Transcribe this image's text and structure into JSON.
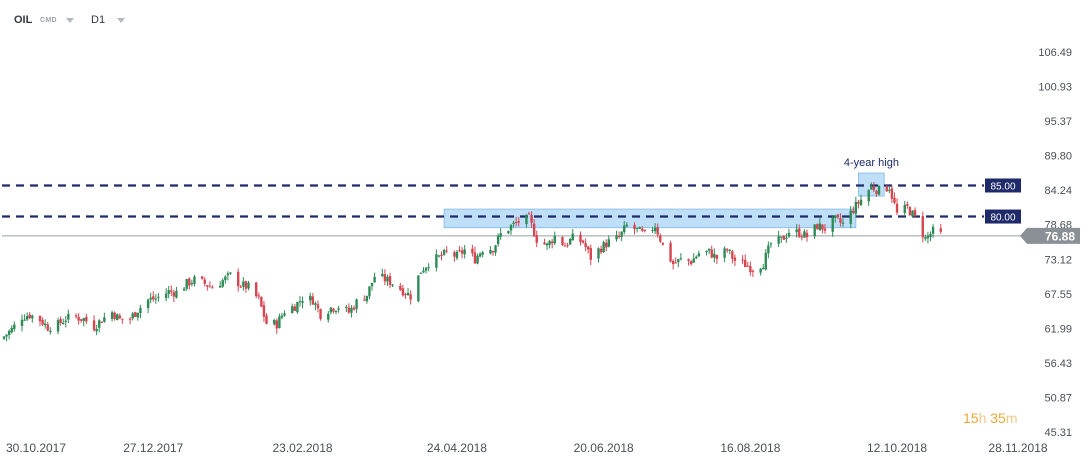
{
  "toolbar": {
    "symbol": "OIL",
    "symbol_type": "CMD",
    "timeframe": "D1"
  },
  "countdown": {
    "hours_value": "15",
    "hours_unit": "h",
    "minutes_value": "35",
    "minutes_unit": "m"
  },
  "colors": {
    "up": "#2e8b57",
    "down": "#d64550",
    "level_line": "#1f2a6b",
    "zone": "#a9d4f5",
    "price_badge": "#8a9096",
    "level_badge": "#1f2a6b"
  },
  "chart_data": {
    "type": "candlestick",
    "symbol": "OIL",
    "timeframe": "D1",
    "x_tick_labels": [
      "30.10.2017",
      "27.12.2017",
      "23.02.2018",
      "24.04.2018",
      "20.06.2018",
      "16.08.2018",
      "12.10.2018",
      "28.11.2018"
    ],
    "y_tick_labels": [
      "106.49",
      "100.93",
      "95.37",
      "89.80",
      "84.24",
      "78.68",
      "73.12",
      "67.55",
      "61.99",
      "56.43",
      "50.87",
      "45.31"
    ],
    "y_range": [
      45.31,
      106.49
    ],
    "current_price": "76.88",
    "levels": [
      {
        "label": "85.00",
        "value": 85.0
      },
      {
        "label": "80.00",
        "value": 80.0
      }
    ],
    "annotation": "4-year high",
    "resistance_zone": {
      "from_date": "2018-04-19",
      "to_date": "2018-09-26",
      "low": 78.2,
      "high": 81.2
    },
    "high_zone": {
      "from_date": "2018-09-27",
      "to_date": "2018-10-07",
      "low": 83.3,
      "high": 87.0
    },
    "closes": [
      [
        "2017-10-30",
        60.7
      ],
      [
        "2017-11-02",
        61.8
      ],
      [
        "2017-11-06",
        63.9
      ],
      [
        "2017-11-09",
        64.2
      ],
      [
        "2017-11-13",
        63.4
      ],
      [
        "2017-11-16",
        62.2
      ],
      [
        "2017-11-20",
        62.6
      ],
      [
        "2017-11-23",
        63.6
      ],
      [
        "2017-11-27",
        63.8
      ],
      [
        "2017-11-30",
        63.5
      ],
      [
        "2017-12-04",
        62.3
      ],
      [
        "2017-12-07",
        63.4
      ],
      [
        "2017-12-11",
        64.6
      ],
      [
        "2017-12-14",
        63.4
      ],
      [
        "2017-12-18",
        63.6
      ],
      [
        "2017-12-21",
        65.0
      ],
      [
        "2017-12-25",
        66.6
      ],
      [
        "2017-12-28",
        66.8
      ],
      [
        "2018-01-02",
        67.9
      ],
      [
        "2018-01-05",
        67.8
      ],
      [
        "2018-01-09",
        69.2
      ],
      [
        "2018-01-12",
        69.8
      ],
      [
        "2018-01-16",
        69.2
      ],
      [
        "2018-01-19",
        68.6
      ],
      [
        "2018-01-23",
        69.7
      ],
      [
        "2018-01-26",
        70.5
      ],
      [
        "2018-01-30",
        69.0
      ],
      [
        "2018-02-02",
        68.6
      ],
      [
        "2018-02-06",
        66.6
      ],
      [
        "2018-02-09",
        62.8
      ],
      [
        "2018-02-13",
        62.7
      ],
      [
        "2018-02-16",
        64.8
      ],
      [
        "2018-02-20",
        65.6
      ],
      [
        "2018-02-23",
        66.9
      ],
      [
        "2018-02-27",
        66.6
      ],
      [
        "2018-03-02",
        64.3
      ],
      [
        "2018-03-06",
        65.3
      ],
      [
        "2018-03-09",
        65.5
      ],
      [
        "2018-03-13",
        64.6
      ],
      [
        "2018-03-16",
        66.2
      ],
      [
        "2018-03-20",
        67.4
      ],
      [
        "2018-03-23",
        70.4
      ],
      [
        "2018-03-27",
        69.9
      ],
      [
        "2018-03-30",
        69.3
      ],
      [
        "2018-04-03",
        68.1
      ],
      [
        "2018-04-06",
        67.2
      ],
      [
        "2018-04-10",
        71.3
      ],
      [
        "2018-04-13",
        72.6
      ],
      [
        "2018-04-17",
        73.4
      ],
      [
        "2018-04-20",
        74.1
      ],
      [
        "2018-04-24",
        73.6
      ],
      [
        "2018-04-27",
        74.6
      ],
      [
        "2018-05-01",
        73.2
      ],
      [
        "2018-05-04",
        74.8
      ],
      [
        "2018-05-08",
        74.9
      ],
      [
        "2018-05-11",
        77.1
      ],
      [
        "2018-05-15",
        78.4
      ],
      [
        "2018-05-18",
        79.2
      ],
      [
        "2018-05-22",
        79.6
      ],
      [
        "2018-05-25",
        76.4
      ],
      [
        "2018-05-29",
        75.3
      ],
      [
        "2018-06-01",
        76.8
      ],
      [
        "2018-06-05",
        75.4
      ],
      [
        "2018-06-08",
        76.5
      ],
      [
        "2018-06-12",
        75.9
      ],
      [
        "2018-06-15",
        73.4
      ],
      [
        "2018-06-19",
        75.0
      ],
      [
        "2018-06-22",
        75.9
      ],
      [
        "2018-06-26",
        76.6
      ],
      [
        "2018-06-29",
        78.5
      ],
      [
        "2018-07-03",
        77.8
      ],
      [
        "2018-07-06",
        77.0
      ],
      [
        "2018-07-10",
        78.6
      ],
      [
        "2018-07-13",
        75.3
      ],
      [
        "2018-07-17",
        72.4
      ],
      [
        "2018-07-20",
        73.0
      ],
      [
        "2018-07-24",
        72.8
      ],
      [
        "2018-07-27",
        74.1
      ],
      [
        "2018-07-31",
        74.3
      ],
      [
        "2018-08-03",
        73.3
      ],
      [
        "2018-08-07",
        74.6
      ],
      [
        "2018-08-10",
        72.9
      ],
      [
        "2018-08-14",
        72.3
      ],
      [
        "2018-08-17",
        71.6
      ],
      [
        "2018-08-21",
        72.5
      ],
      [
        "2018-08-24",
        75.6
      ],
      [
        "2018-08-28",
        76.2
      ],
      [
        "2018-08-31",
        77.6
      ],
      [
        "2018-09-04",
        77.4
      ],
      [
        "2018-09-07",
        76.8
      ],
      [
        "2018-09-11",
        78.5
      ],
      [
        "2018-09-14",
        78.1
      ],
      [
        "2018-09-18",
        79.4
      ],
      [
        "2018-09-21",
        78.8
      ],
      [
        "2018-09-25",
        81.2
      ],
      [
        "2018-09-28",
        82.7
      ],
      [
        "2018-10-02",
        84.8
      ],
      [
        "2018-10-05",
        84.2
      ],
      [
        "2018-10-09",
        84.8
      ],
      [
        "2018-10-12",
        80.4
      ],
      [
        "2018-10-16",
        81.4
      ],
      [
        "2018-10-19",
        79.8
      ],
      [
        "2018-10-23",
        76.4
      ],
      [
        "2018-10-26",
        77.6
      ],
      [
        "2018-10-30",
        76.9
      ]
    ]
  }
}
